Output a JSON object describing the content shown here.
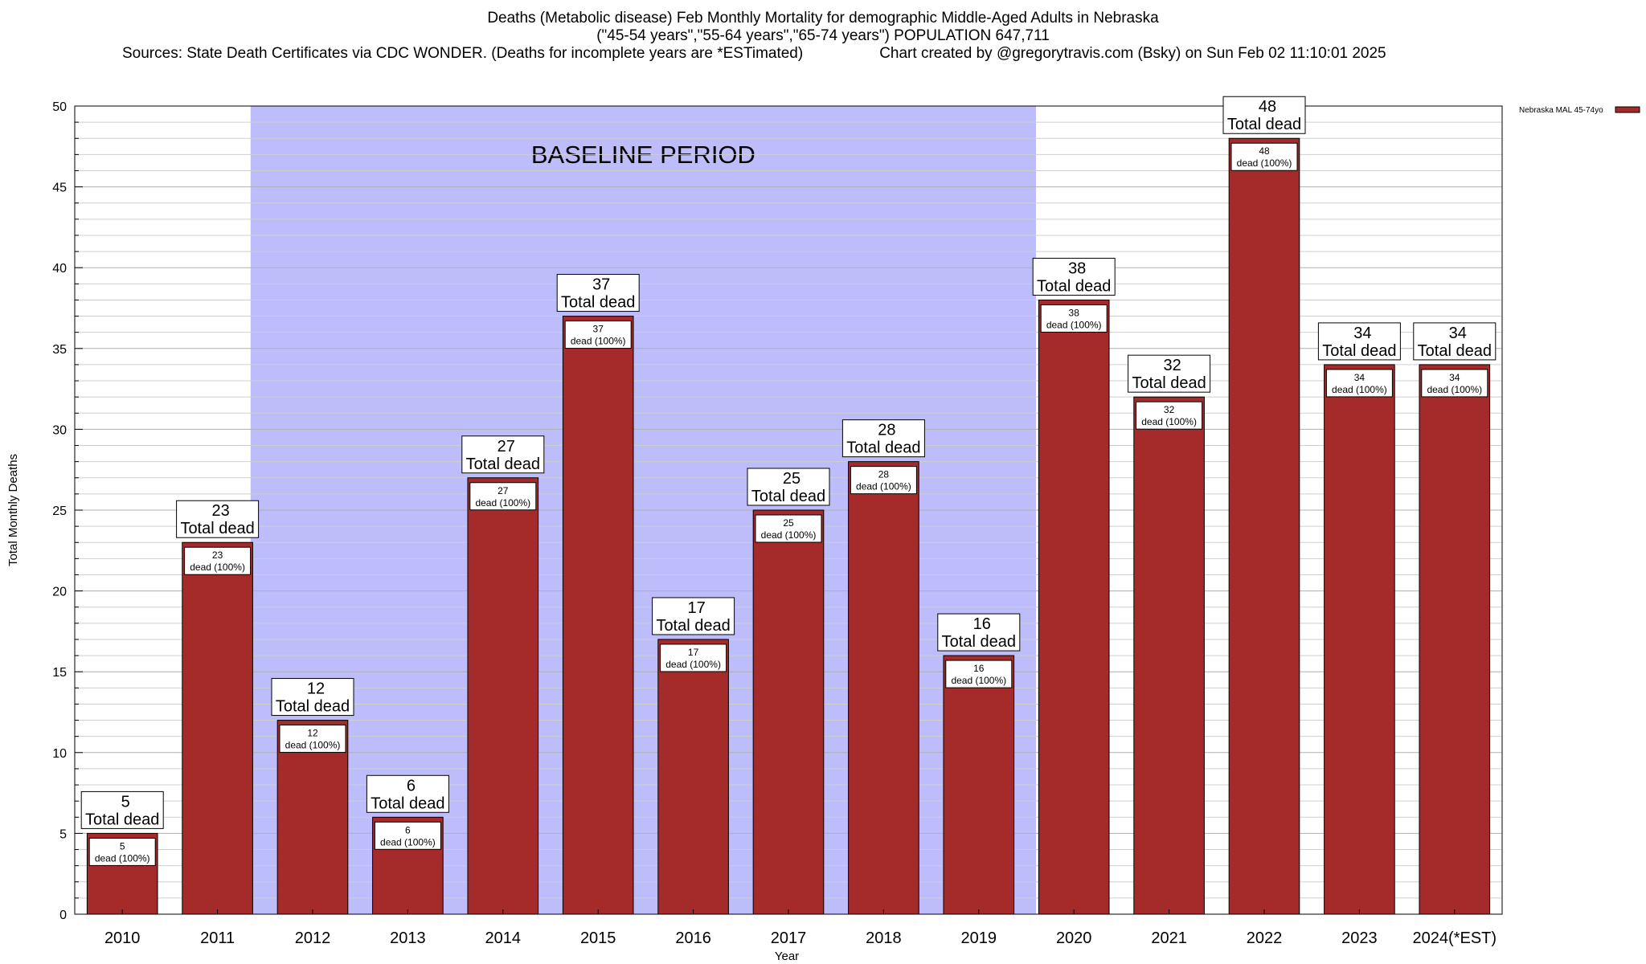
{
  "header": {
    "title_line1": "Deaths (Metabolic disease) Feb Monthly Mortality for demographic Middle-Aged Adults in Nebraska",
    "title_line2": "(\"45-54 years\",\"55-64 years\",\"65-74 years\") POPULATION 647,711",
    "sources": "Sources: State Death Certificates via CDC WONDER. (Deaths for incomplete years are *ESTimated)",
    "credit": "Chart created by @gregorytravis.com (Bsky) on Sun Feb 02 11:10:01 2025"
  },
  "chart_data": {
    "type": "bar",
    "xlabel": "Year",
    "ylabel": "Total Monthly Deaths",
    "ylim": [
      0,
      50
    ],
    "y_ticks": [
      0,
      5,
      10,
      15,
      20,
      25,
      30,
      35,
      40,
      45,
      50
    ],
    "grid": true,
    "legend_placement": "top-right",
    "categories": [
      "2010",
      "2011",
      "2012",
      "2013",
      "2014",
      "2015",
      "2016",
      "2017",
      "2018",
      "2019",
      "2020",
      "2021",
      "2022",
      "2023",
      "2024(*EST)"
    ],
    "series": [
      {
        "name": "Nebraska MAL 45-74yo",
        "color": "#a52a2a",
        "values": [
          5,
          23,
          12,
          6,
          27,
          37,
          17,
          25,
          28,
          16,
          38,
          32,
          48,
          34,
          34
        ]
      }
    ],
    "total_label": "Total dead",
    "inner_label": "dead (100%)",
    "baseline": {
      "label": "BASELINE PERIOD",
      "start_category": "2012",
      "end_category": "2019",
      "color": "#bdbdfb"
    }
  }
}
